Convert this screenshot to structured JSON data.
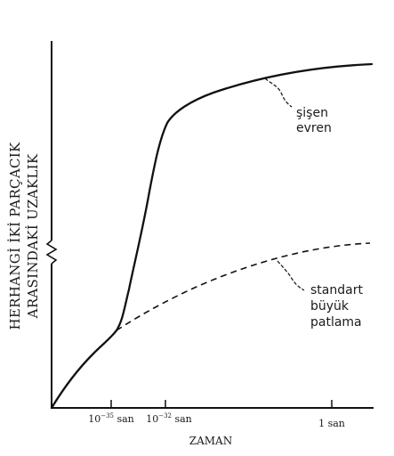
{
  "chart_data": {
    "type": "line",
    "ylabel_lines": [
      "HERHANGİ İKİ PARÇACIK",
      "ARASINDAKİ UZAKLIK"
    ],
    "xlabel": "ZAMAN",
    "x_ticks": [
      {
        "base": "10",
        "exp": "−35",
        "unit": " san"
      },
      {
        "base": "10",
        "exp": "−32",
        "unit": " san"
      },
      {
        "base": "",
        "exp": "",
        "unit": "1 san"
      }
    ],
    "series": [
      {
        "name": "şişen evren",
        "label_lines": [
          "şişen",
          "evren"
        ],
        "style": "solid"
      },
      {
        "name": "standart büyük patlama",
        "label_lines": [
          "standart",
          "büyük",
          "patlama"
        ],
        "style": "dashed"
      }
    ],
    "y_axis_break": true,
    "grid": false,
    "legend": "inline-annotations"
  }
}
